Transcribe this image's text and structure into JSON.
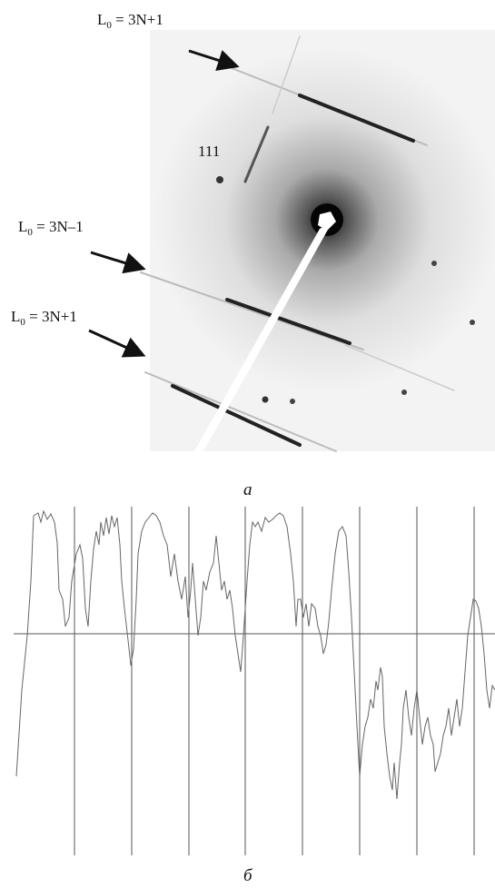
{
  "figure": {
    "labels": [
      {
        "symbol": "L",
        "subscript": "0",
        "rest": " = 3N+1"
      },
      {
        "symbol": "L",
        "subscript": "0",
        "rest": " = 3N–1"
      },
      {
        "symbol": "L",
        "subscript": "0",
        "rest": " = 3N+1"
      }
    ],
    "reflection": "111",
    "panel_a": "a",
    "panel_b": "б"
  }
}
